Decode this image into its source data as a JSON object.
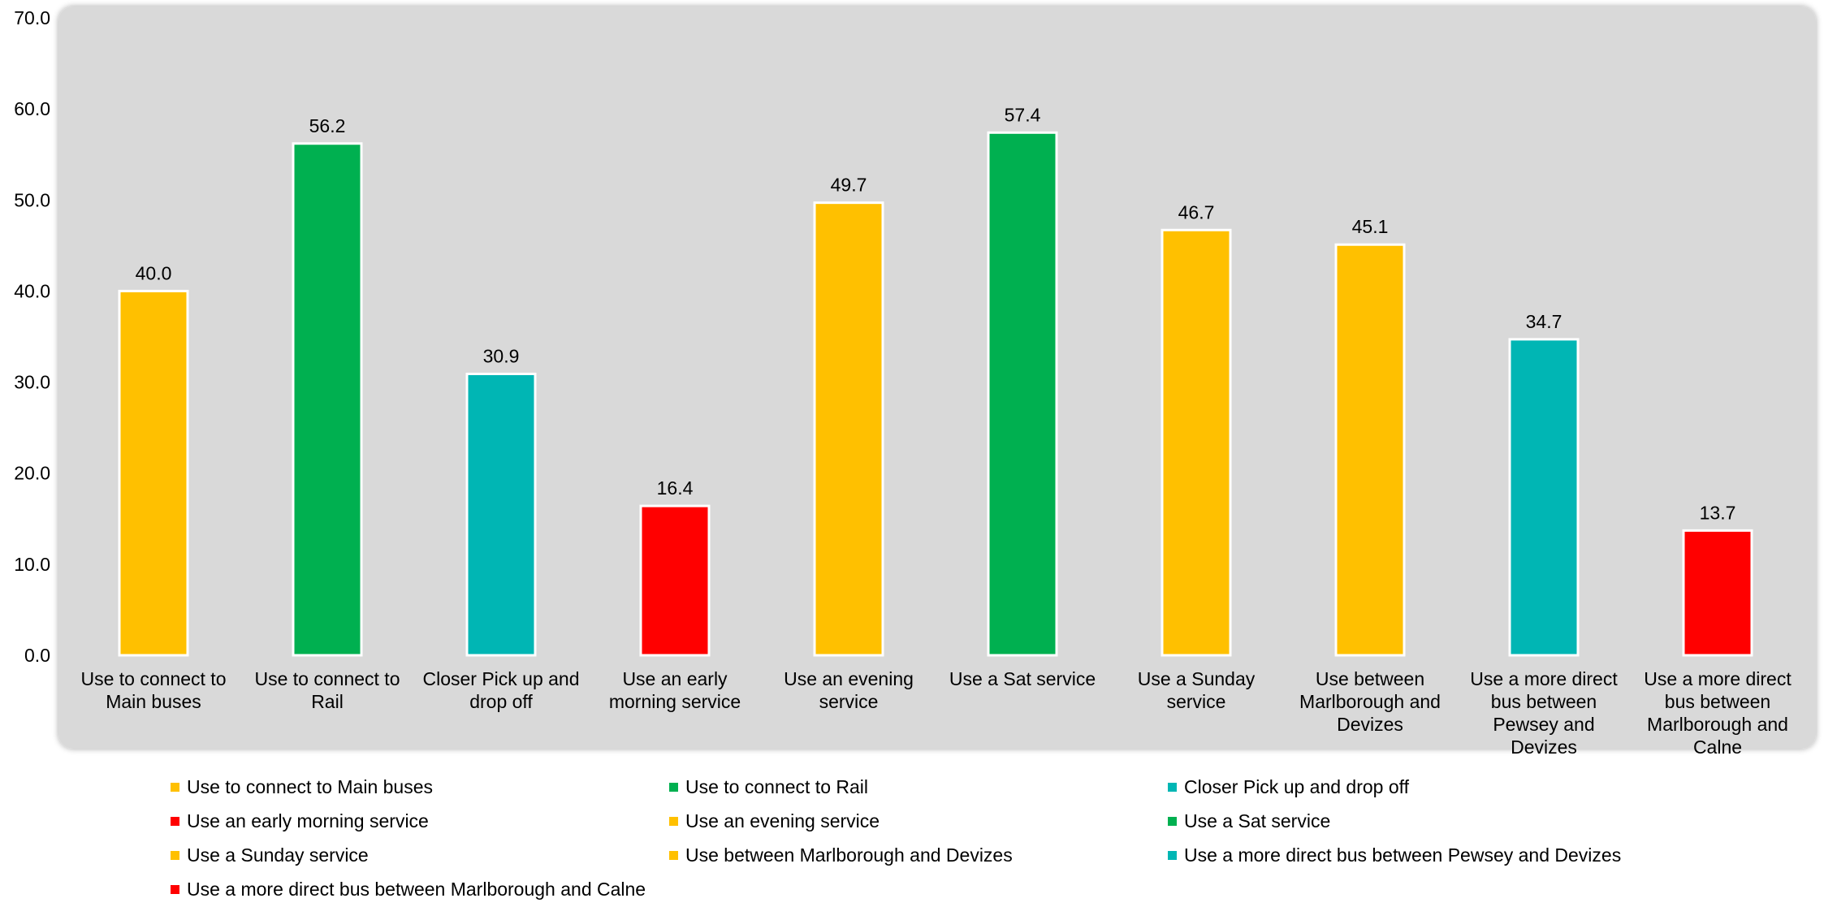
{
  "chart_data": {
    "type": "bar",
    "title": "",
    "xlabel": "",
    "ylabel": "",
    "ylim": [
      0,
      70
    ],
    "yticks": [
      "0.0",
      "10.0",
      "20.0",
      "30.0",
      "40.0",
      "50.0",
      "60.0",
      "70.0"
    ],
    "grid": false,
    "legend_position": "bottom",
    "categories": [
      "Use to connect to Main buses",
      "Use to connect to Rail",
      "Closer Pick up and drop off",
      "Use an early morning service",
      "Use an evening service",
      "Use a Sat service",
      "Use a Sunday service",
      "Use between Marlborough and Devizes",
      "Use a more direct bus between Pewsey and Devizes",
      "Use a more direct bus between Marlborough and Calne"
    ],
    "category_label_lines": [
      [
        "Use to connect to",
        "Main buses"
      ],
      [
        "Use to connect to",
        "Rail"
      ],
      [
        "Closer Pick up and",
        "drop off"
      ],
      [
        "Use an early",
        "morning service"
      ],
      [
        "Use an evening",
        "service"
      ],
      [
        "Use a Sat service"
      ],
      [
        "Use a Sunday",
        "service"
      ],
      [
        "Use between",
        "Marlborough and",
        "Devizes"
      ],
      [
        "Use a more direct",
        "bus between",
        "Pewsey and",
        "Devizes"
      ],
      [
        "Use a more direct",
        "bus between",
        "Marlborough and",
        "Calne"
      ]
    ],
    "values": [
      40.0,
      56.2,
      30.9,
      16.4,
      49.7,
      57.4,
      46.7,
      45.1,
      34.7,
      13.7
    ],
    "data_labels": [
      "40.0",
      "56.2",
      "30.9",
      "16.4",
      "49.7",
      "57.4",
      "46.7",
      "45.1",
      "34.7",
      "13.7"
    ],
    "colors": [
      "#FFC000",
      "#00B050",
      "#00B6B4",
      "#FF0000",
      "#FFC000",
      "#00B050",
      "#FFC000",
      "#FFC000",
      "#00B6B4",
      "#FF0000"
    ],
    "plot_background": "#D9D9D9",
    "bar_border": "#FFFFFF"
  }
}
